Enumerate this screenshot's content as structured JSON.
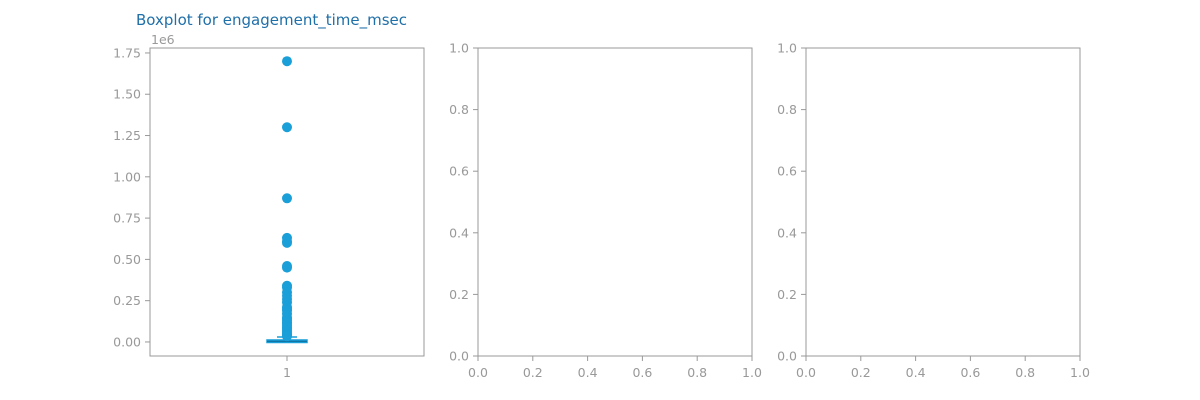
{
  "theme": {
    "accent": "#1a9fd8",
    "title_color": "#1f6fa8",
    "axis_color": "#999999",
    "tick_text_color": "#999999"
  },
  "chart_data": [
    {
      "type": "box",
      "title": "Boxplot for engagement_time_msec",
      "x_ticks": [
        "1"
      ],
      "y_ticks": [
        "0.00",
        "0.25",
        "0.50",
        "0.75",
        "1.00",
        "1.25",
        "1.50",
        "1.75"
      ],
      "y_tick_values": [
        0,
        0.25,
        0.5,
        0.75,
        1.0,
        1.25,
        1.5,
        1.75
      ],
      "y_scale_label": "1e6",
      "ylim": [
        -0.085,
        1.78
      ],
      "box": {
        "min": 0.0,
        "q1": 0.001,
        "median": 0.004,
        "q3": 0.012,
        "whisker_high": 0.03
      },
      "outliers": [
        1.7,
        1.3,
        0.87,
        0.63,
        0.61,
        0.6,
        0.46,
        0.45,
        0.34,
        0.33,
        0.3,
        0.28,
        0.26,
        0.24,
        0.21,
        0.2,
        0.19,
        0.17,
        0.15,
        0.14,
        0.13,
        0.12,
        0.11,
        0.1,
        0.09,
        0.08,
        0.07,
        0.06,
        0.05,
        0.045,
        0.04,
        0.035
      ]
    },
    {
      "type": "empty",
      "x_ticks": [
        "0.0",
        "0.2",
        "0.4",
        "0.6",
        "0.8",
        "1.0"
      ],
      "y_ticks": [
        "0.0",
        "0.2",
        "0.4",
        "0.6",
        "0.8",
        "1.0"
      ],
      "xlim": [
        0,
        1
      ],
      "ylim": [
        0,
        1
      ]
    },
    {
      "type": "empty",
      "x_ticks": [
        "0.0",
        "0.2",
        "0.4",
        "0.6",
        "0.8",
        "1.0"
      ],
      "y_ticks": [
        "0.0",
        "0.2",
        "0.4",
        "0.6",
        "0.8",
        "1.0"
      ],
      "xlim": [
        0,
        1
      ],
      "ylim": [
        0,
        1
      ]
    }
  ]
}
